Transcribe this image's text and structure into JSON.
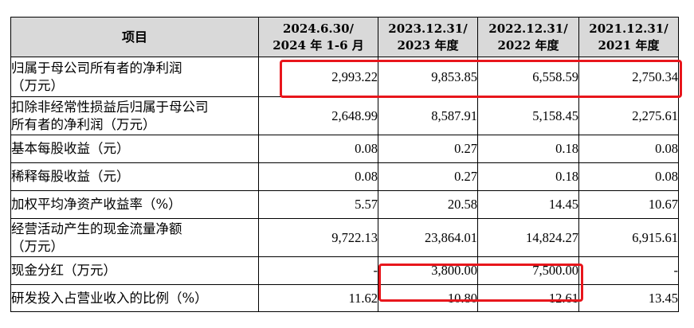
{
  "table": {
    "headers": [
      {
        "line1": "项目",
        "line2": ""
      },
      {
        "line1": "2024.6.30/",
        "line2": "2024 年 1-6 月"
      },
      {
        "line1": "2023.12.31/",
        "line2": "2023 年度"
      },
      {
        "line1": "2022.12.31/",
        "line2": "2022 年度"
      },
      {
        "line1": "2021.12.31/",
        "line2": "2021 年度"
      }
    ],
    "rows": [
      {
        "label": "归属于母公司所有者的净利润\n（万元）",
        "values": [
          "2,993.22",
          "9,853.85",
          "6,558.59",
          "2,750.34"
        ]
      },
      {
        "label": "扣除非经常性损益后归属于母公司\n所有者的净利润（万元）",
        "values": [
          "2,648.99",
          "8,587.91",
          "5,158.45",
          "2,275.61"
        ]
      },
      {
        "label": "基本每股收益（元）",
        "values": [
          "0.08",
          "0.27",
          "0.18",
          "0.08"
        ]
      },
      {
        "label": "稀释每股收益（元）",
        "values": [
          "0.08",
          "0.27",
          "0.18",
          "0.08"
        ]
      },
      {
        "label": "加权平均净资产收益率（%）",
        "values": [
          "5.57",
          "20.58",
          "14.45",
          "10.67"
        ]
      },
      {
        "label": "经营活动产生的现金流量净额\n（万元）",
        "values": [
          "9,722.13",
          "23,864.01",
          "14,824.27",
          "6,915.61"
        ]
      },
      {
        "label": "现金分红（万元）",
        "values": [
          "-",
          "3,800.00",
          "7,500.00",
          "-"
        ]
      },
      {
        "label": "研发投入占营业收入的比例（%）",
        "values": [
          "11.62",
          "10.80",
          "12.61",
          "13.45"
        ]
      }
    ]
  },
  "colors": {
    "header_bg": "#d9d9d9",
    "highlight": "#e8161c",
    "border": "#000000"
  }
}
